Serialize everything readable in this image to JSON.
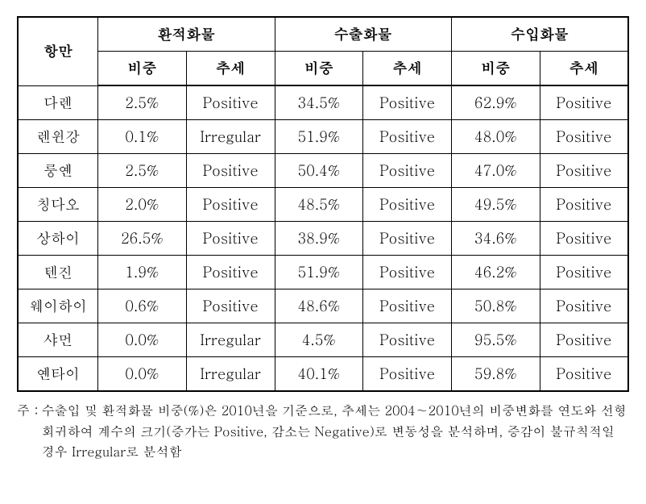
{
  "table": {
    "headers": {
      "port": "항만",
      "groups": [
        "환적화물",
        "수출화물",
        "수입화물"
      ],
      "subcols": [
        "비중",
        "추세"
      ]
    },
    "rows": [
      {
        "port": "다렌",
        "cells": [
          "2.5%",
          "Positive",
          "34.5%",
          "Positive",
          "62.9%",
          "Positive"
        ]
      },
      {
        "port": "렌윈강",
        "cells": [
          "0.1%",
          "Irregular",
          "51.9%",
          "Positive",
          "48.0%",
          "Positive"
        ]
      },
      {
        "port": "룽옌",
        "cells": [
          "2.5%",
          "Positive",
          "50.4%",
          "Positive",
          "47.0%",
          "Positive"
        ]
      },
      {
        "port": "칭다오",
        "cells": [
          "2.0%",
          "Positive",
          "48.5%",
          "Positive",
          "49.5%",
          "Positive"
        ]
      },
      {
        "port": "상하이",
        "cells": [
          "26.5%",
          "Positive",
          "38.9%",
          "Positive",
          "34.6%",
          "Positive"
        ]
      },
      {
        "port": "텐진",
        "cells": [
          "1.9%",
          "Positive",
          "51.9%",
          "Positive",
          "46.2%",
          "Positive"
        ]
      },
      {
        "port": "웨이하이",
        "cells": [
          "0.6%",
          "Positive",
          "48.6%",
          "Positive",
          "50.8%",
          "Positive"
        ]
      },
      {
        "port": "샤먼",
        "cells": [
          "0.0%",
          "Irregular",
          "4.5%",
          "Positive",
          "95.5%",
          "Positive"
        ]
      },
      {
        "port": "옌타이",
        "cells": [
          "0.0%",
          "Irregular",
          "40.1%",
          "Positive",
          "59.8%",
          "Positive"
        ]
      }
    ]
  },
  "footnote": {
    "label": "주 :",
    "text": "수출입 및 환적화물 비중(%)은 2010년을 기준으로, 추세는 2004∼2010년의 비중변화를 연도와 선형회귀하여 계수의 크기(증가는 Positive, 감소는 Negative)로 변동성을 분석하며, 증감이 불규칙적일 경우 Irregular로 분석함"
  }
}
